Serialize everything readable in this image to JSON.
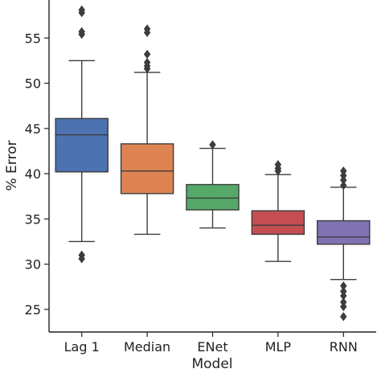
{
  "chart_data": {
    "type": "box",
    "title": "",
    "xlabel": "Model",
    "ylabel": "% Error",
    "ylim": [
      22.5,
      59.2
    ],
    "yticks": [
      25,
      30,
      35,
      40,
      45,
      50,
      55
    ],
    "grid": false,
    "legend": "none",
    "categories": [
      "Lag 1",
      "Median",
      "ENet",
      "MLP",
      "RNN"
    ],
    "series": [
      {
        "name": "Lag 1",
        "color": "#4c72b0",
        "whisker_low": 32.5,
        "q1": 40.2,
        "median": 44.3,
        "q3": 46.1,
        "whisker_high": 52.5,
        "outliers": [
          31.0,
          30.6,
          55.4,
          55.7,
          57.8,
          58.1
        ]
      },
      {
        "name": "Median",
        "color": "#dd8452",
        "whisker_low": 33.3,
        "q1": 37.8,
        "median": 40.3,
        "q3": 43.3,
        "whisker_high": 51.2,
        "outliers": [
          51.6,
          51.9,
          52.3,
          53.2,
          55.6,
          56.0
        ]
      },
      {
        "name": "ENet",
        "color": "#55a868",
        "whisker_low": 34.0,
        "q1": 36.0,
        "median": 37.3,
        "q3": 38.8,
        "whisker_high": 42.8,
        "outliers": [
          43.2
        ]
      },
      {
        "name": "MLP",
        "color": "#c44e52",
        "whisker_low": 30.3,
        "q1": 33.3,
        "median": 34.3,
        "q3": 35.9,
        "whisker_high": 39.9,
        "outliers": [
          40.3,
          40.6,
          41.0
        ]
      },
      {
        "name": "RNN",
        "color": "#8172b2",
        "whisker_low": 28.3,
        "q1": 32.2,
        "median": 33.0,
        "q3": 34.8,
        "whisker_high": 38.5,
        "outliers": [
          24.2,
          25.3,
          25.8,
          26.5,
          27.0,
          27.6,
          38.7,
          39.3,
          39.8,
          40.3
        ]
      }
    ]
  }
}
